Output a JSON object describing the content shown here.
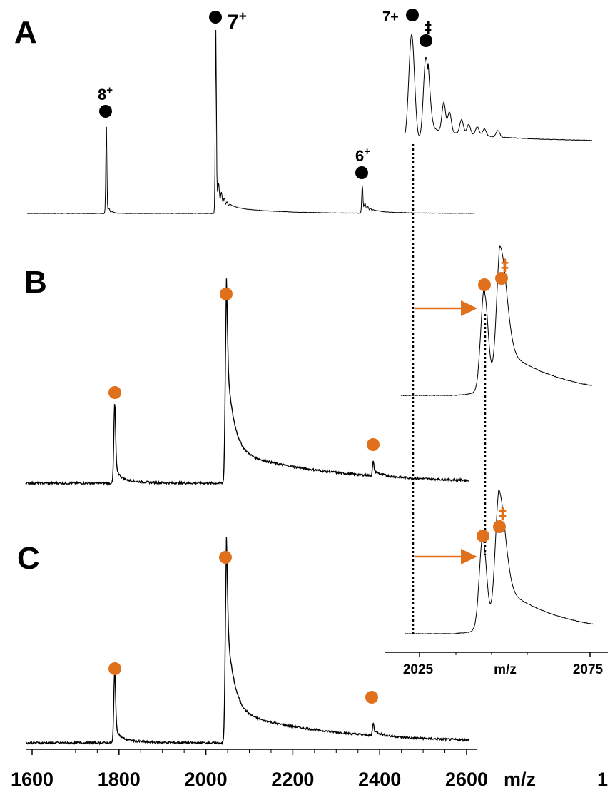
{
  "colors": {
    "trace": "#000000",
    "orange": "#E0701C",
    "black_marker": "#000000"
  },
  "panels": [
    {
      "label": "A",
      "marker_color": "black",
      "peak_labels": [
        "8",
        "7",
        "6"
      ],
      "charge_sign": "+"
    },
    {
      "label": "B",
      "marker_color": "orange"
    },
    {
      "label": "C",
      "marker_color": "orange"
    }
  ],
  "inset_A": {
    "labels": {
      "left": "7+",
      "right": "‡"
    }
  },
  "inset_B": {
    "dagger": "‡"
  },
  "inset_C": {
    "dagger": "‡"
  },
  "main_axis": {
    "ticks": [
      "1600",
      "1800",
      "2000",
      "2200",
      "2400",
      "2600"
    ],
    "unit": "m/z",
    "trailing": "1"
  },
  "inset_axis": {
    "ticks": [
      "2025",
      "2075"
    ],
    "unit": "m/z"
  },
  "chart_data": {
    "type": "line",
    "title": "",
    "xlabel": "m/z",
    "ylabel": "",
    "xlim": [
      1590,
      2620
    ],
    "xticks": [
      1600,
      1800,
      2000,
      2200,
      2400,
      2600
    ],
    "inset_xlim": [
      2020,
      2078
    ],
    "inset_xticks": [
      2025,
      2075
    ],
    "series": [
      {
        "panel": "A",
        "peaks": [
          {
            "x": 1771,
            "rel_intensity": 0.48,
            "charge": "8+"
          },
          {
            "x": 2023,
            "rel_intensity": 1.0,
            "charge": "7+"
          },
          {
            "x": 2360,
            "rel_intensity": 0.16,
            "charge": "6+"
          }
        ]
      },
      {
        "panel": "B",
        "peaks": [
          {
            "x": 1790,
            "rel_intensity": 0.46
          },
          {
            "x": 2047,
            "rel_intensity": 1.0
          },
          {
            "x": 2385,
            "rel_intensity": 0.11
          }
        ]
      },
      {
        "panel": "C",
        "peaks": [
          {
            "x": 1790,
            "rel_intensity": 0.42
          },
          {
            "x": 2047,
            "rel_intensity": 1.0
          },
          {
            "x": 2385,
            "rel_intensity": 0.1
          }
        ]
      }
    ],
    "insets": [
      {
        "panel": "A",
        "peaks": [
          {
            "x": 2024,
            "rel_intensity": 1.0,
            "label": "7+"
          },
          {
            "x": 2029,
            "rel_intensity": 0.78,
            "label": "‡"
          }
        ]
      },
      {
        "panel": "B",
        "peaks": [
          {
            "x": 2044,
            "rel_intensity": 0.8
          },
          {
            "x": 2049,
            "rel_intensity": 1.0,
            "label": "‡"
          }
        ]
      },
      {
        "panel": "C",
        "peaks": [
          {
            "x": 2044,
            "rel_intensity": 0.85
          },
          {
            "x": 2049,
            "rel_intensity": 1.0,
            "label": "‡"
          }
        ]
      }
    ]
  }
}
